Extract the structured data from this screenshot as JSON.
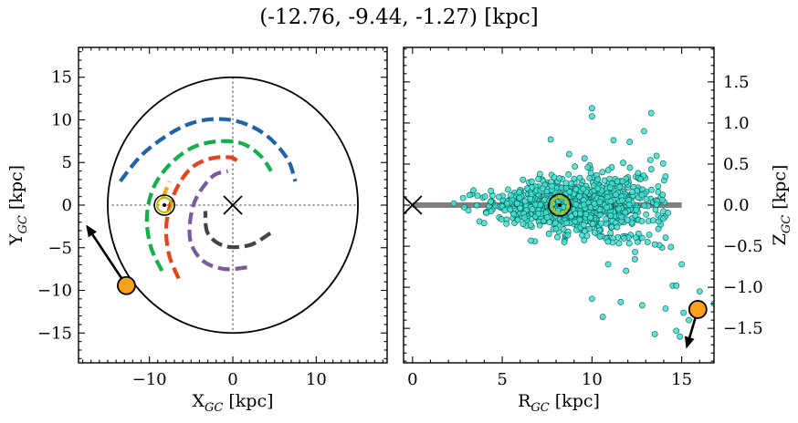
{
  "title": "(-12.76, -9.44, -1.27) [kpc]",
  "chart_data": [
    {
      "type": "scatter",
      "panel": "left",
      "xlabel": "X",
      "xlabel_sub": "GC",
      "xlabel_unit": " [kpc]",
      "ylabel": "Y",
      "ylabel_sub": "GC",
      "ylabel_unit": " [kpc]",
      "xlim": [
        -18.5,
        18.5
      ],
      "ylim": [
        -18.5,
        18.5
      ],
      "xticks": [
        -10,
        0,
        10
      ],
      "xticklabels": [
        "−10",
        "0",
        "10"
      ],
      "yticks": [
        -15,
        -10,
        -5,
        0,
        5,
        10,
        15
      ],
      "yticklabels": [
        "−15",
        "−10",
        "−5",
        "0",
        "5",
        "10",
        "15"
      ],
      "circle_radius": 15,
      "galactic_center": [
        0,
        0
      ],
      "sun": [
        -8.2,
        0
      ],
      "object": [
        -12.76,
        -9.44
      ],
      "velocity_arrow_end": [
        -17.6,
        -2.3
      ],
      "colors": {
        "arm_blue": "#1f63a8",
        "arm_green": "#12b04a",
        "arm_orange": "#f7a21a",
        "arm_red": "#e8421c",
        "arm_purple": "#7c5a9c",
        "arm_gray": "#454545",
        "object": "#f7a21a"
      },
      "spiral_arms": [
        {
          "color": "arm_blue",
          "points": [
            [
              -13.5,
              2.8
            ],
            [
              -11,
              5.8
            ],
            [
              -8,
              8.1
            ],
            [
              -5,
              9.6
            ],
            [
              -2,
              10.1
            ],
            [
              1,
              9.7
            ],
            [
              4,
              8.2
            ],
            [
              6.5,
              5.5
            ],
            [
              7.5,
              2.8
            ]
          ]
        },
        {
          "color": "arm_green",
          "points": [
            [
              -8.5,
              -7.7
            ],
            [
              -9.8,
              -5
            ],
            [
              -10.3,
              -2
            ],
            [
              -10,
              0.6
            ],
            [
              -9,
              3
            ],
            [
              -7,
              5.3
            ],
            [
              -4.5,
              6.9
            ],
            [
              -1.5,
              7.5
            ],
            [
              1.2,
              7.2
            ],
            [
              3.3,
              5.8
            ],
            [
              4.6,
              4
            ]
          ]
        },
        {
          "color": "arm_orange",
          "points": [
            [
              -8.4,
              0.8
            ],
            [
              -7.6,
              2.8
            ]
          ]
        },
        {
          "color": "arm_red",
          "points": [
            [
              -6.5,
              -8.6
            ],
            [
              -7.6,
              -6
            ],
            [
              -8,
              -3
            ],
            [
              -7.6,
              -0.3
            ],
            [
              -6.5,
              2.4
            ],
            [
              -4.8,
              4.5
            ],
            [
              -2.5,
              5.5
            ],
            [
              -0.3,
              5.6
            ],
            [
              0.5,
              5.2
            ]
          ]
        },
        {
          "color": "arm_purple",
          "points": [
            [
              1.7,
              -7.3
            ],
            [
              -1,
              -7.5
            ],
            [
              -3.5,
              -6.6
            ],
            [
              -5,
              -4.5
            ],
            [
              -5.1,
              -1.7
            ],
            [
              -4.3,
              1
            ],
            [
              -2.4,
              3.4
            ],
            [
              -0.6,
              4
            ]
          ]
        },
        {
          "color": "arm_gray",
          "points": [
            [
              4.5,
              -3.3
            ],
            [
              2,
              -4.7
            ],
            [
              -1,
              -4.8
            ],
            [
              -3,
              -3.3
            ],
            [
              -3.3,
              -0.7
            ]
          ]
        }
      ]
    },
    {
      "type": "scatter",
      "panel": "right",
      "xlabel": "R",
      "xlabel_sub": "GC",
      "xlabel_unit": " [kpc]",
      "ylabel": "Z",
      "ylabel_sub": "GC",
      "ylabel_unit": " [kpc]",
      "xlim": [
        -0.5,
        16.8
      ],
      "ylim": [
        -1.92,
        1.92
      ],
      "xticks": [
        0,
        5,
        10,
        15
      ],
      "xticklabels": [
        "0",
        "5",
        "10",
        "15"
      ],
      "yticks": [
        -1.5,
        -1.0,
        -0.5,
        0.0,
        0.5,
        1.0,
        1.5
      ],
      "yticklabels": [
        "−1.5",
        "−1.0",
        "−0.5",
        "0.0",
        "0.5",
        "1.0",
        "1.5"
      ],
      "galactic_center": [
        0,
        0
      ],
      "disk_line": [
        [
          0,
          0
        ],
        [
          15,
          0
        ]
      ],
      "sun": [
        8.2,
        0
      ],
      "object": [
        15.9,
        -1.27
      ],
      "velocity_arrow_end": [
        15.25,
        -1.75
      ],
      "colors": {
        "points_fill": "#40e0d0",
        "points_edge": "#0b5a55",
        "disk_line": "#808080",
        "object": "#f7a21a"
      },
      "outlier_points": [
        [
          10.0,
          1.18
        ],
        [
          10.0,
          1.08
        ],
        [
          13.3,
          1.12
        ],
        [
          7.7,
          0.8
        ],
        [
          11.2,
          0.79
        ],
        [
          12.9,
          0.9
        ],
        [
          12.1,
          0.77
        ],
        [
          13.6,
          0.6
        ],
        [
          14.1,
          0.35
        ],
        [
          3.4,
          0.18
        ],
        [
          2.3,
          0.02
        ],
        [
          10.9,
          -0.72
        ],
        [
          11.9,
          -0.8
        ],
        [
          14.5,
          -0.98
        ],
        [
          14.7,
          -0.98
        ],
        [
          10.0,
          -1.14
        ],
        [
          11.6,
          -1.18
        ],
        [
          12.8,
          -1.22
        ],
        [
          10.6,
          -1.36
        ],
        [
          14.1,
          -1.26
        ],
        [
          15.1,
          -1.31
        ],
        [
          14.7,
          -1.53
        ],
        [
          13.5,
          -1.57
        ],
        [
          14.9,
          -1.6
        ],
        [
          15.4,
          -1.4
        ],
        [
          16.8,
          -1.2
        ],
        [
          16.0,
          -1.05
        ],
        [
          12.4,
          -0.57
        ],
        [
          13.1,
          -0.45
        ],
        [
          14.4,
          -0.51
        ],
        [
          15.0,
          -0.72
        ],
        [
          13.7,
          -0.29
        ]
      ],
      "cluster": {
        "count": 950,
        "center_r": 9.2,
        "r_spread": 2.3,
        "r_min": 2.5,
        "r_max": 14.5,
        "z_spread": 0.2
      }
    }
  ]
}
